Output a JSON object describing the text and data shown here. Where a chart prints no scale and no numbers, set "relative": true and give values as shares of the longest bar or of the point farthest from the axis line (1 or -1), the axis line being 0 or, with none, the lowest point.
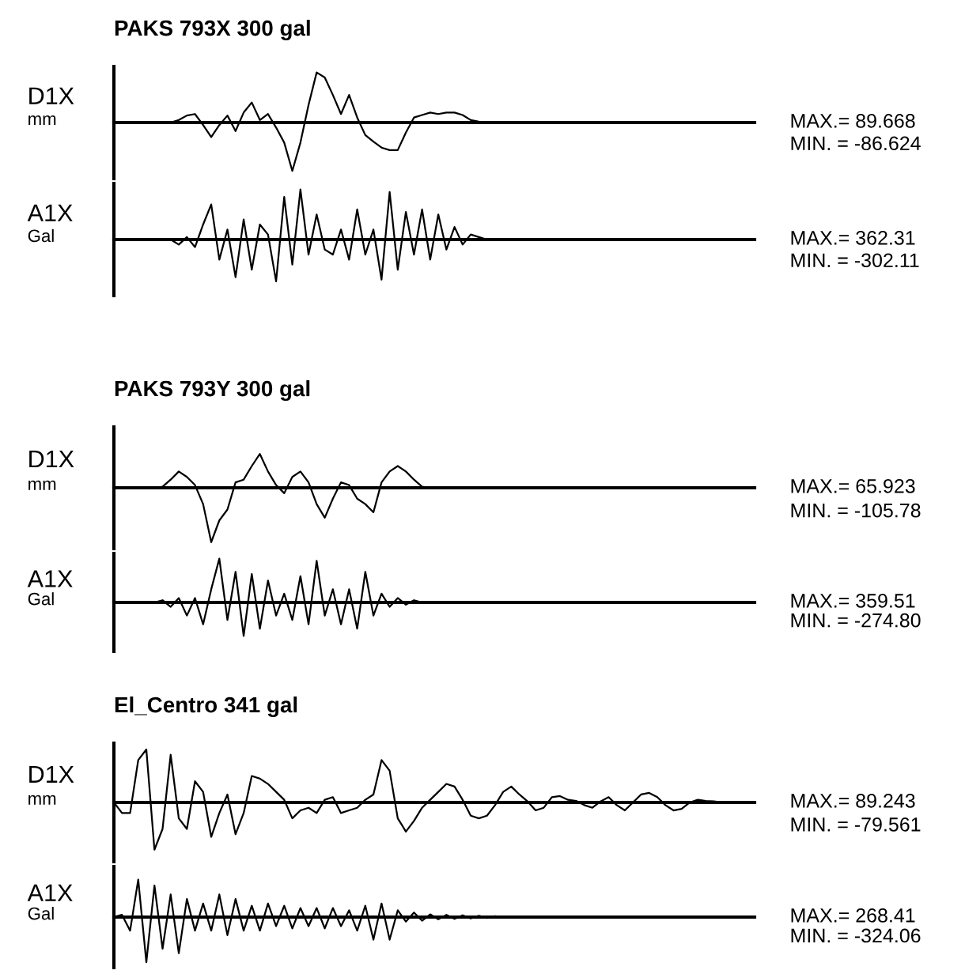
{
  "chart_data": [
    {
      "type": "line",
      "title": "PAKS 793X 300 gal",
      "ylabel": "D1X\nmm",
      "relative": true,
      "color": "#000000",
      "annotations": [
        "MAX.= 89.668",
        "MIN. = -86.624"
      ],
      "categories": [
        null,
        null,
        null,
        null,
        null,
        null,
        null,
        null,
        null,
        null,
        null,
        null,
        null,
        null,
        null,
        null,
        null,
        null,
        null,
        null,
        null,
        null,
        null,
        null,
        null,
        null,
        null,
        null,
        null,
        null,
        null,
        null,
        null,
        null,
        null,
        null,
        null,
        null,
        null,
        null,
        null,
        null,
        null,
        null,
        null,
        null,
        null,
        null,
        null,
        null,
        null,
        null,
        null,
        null,
        null,
        null,
        null,
        null,
        null,
        null,
        null,
        null,
        null,
        null,
        null,
        null,
        null,
        null,
        null,
        null,
        null,
        null,
        null,
        null,
        null,
        null,
        null,
        null,
        null,
        null
      ],
      "values": [
        0,
        0,
        0,
        0,
        0,
        0,
        0,
        0,
        0.05,
        0.14,
        0.17,
        -0.05,
        -0.29,
        -0.05,
        0.14,
        -0.17,
        0.2,
        0.4,
        0.05,
        0.17,
        -0.1,
        -0.4,
        -0.966,
        -0.4,
        0.35,
        1,
        0.9,
        0.55,
        0.17,
        0.55,
        0.1,
        -0.25,
        -0.38,
        -0.5,
        -0.55,
        -0.55,
        -0.2,
        0.1,
        0.15,
        0.2,
        0.17,
        0.2,
        0.2,
        0.15,
        0.05,
        0.02,
        0,
        0,
        0,
        0,
        0,
        0,
        0,
        0,
        0,
        0,
        0,
        0,
        0,
        0,
        0,
        0,
        0,
        0,
        0,
        0,
        0,
        0,
        0,
        0,
        0,
        0,
        0,
        0,
        0,
        0,
        0,
        0,
        0,
        0
      ]
    },
    {
      "type": "line",
      "ylabel": "A1X\nGal",
      "relative": true,
      "color": "#000000",
      "annotations": [
        "MAX.= 362.31",
        "MIN. = -302.11"
      ],
      "categories": [
        null,
        null,
        null,
        null,
        null,
        null,
        null,
        null,
        null,
        null,
        null,
        null,
        null,
        null,
        null,
        null,
        null,
        null,
        null,
        null,
        null,
        null,
        null,
        null,
        null,
        null,
        null,
        null,
        null,
        null,
        null,
        null,
        null,
        null,
        null,
        null,
        null,
        null,
        null,
        null,
        null,
        null,
        null,
        null,
        null,
        null,
        null,
        null,
        null,
        null,
        null,
        null,
        null,
        null,
        null,
        null,
        null,
        null,
        null,
        null,
        null,
        null,
        null,
        null,
        null,
        null,
        null,
        null,
        null,
        null,
        null,
        null,
        null,
        null,
        null,
        null,
        null,
        null,
        null,
        null
      ],
      "values": [
        0,
        0,
        0,
        0,
        0,
        0,
        0,
        0,
        -0.1,
        0.05,
        -0.15,
        0.3,
        0.7,
        -0.4,
        0.2,
        -0.75,
        0.4,
        -0.6,
        0.3,
        0.1,
        -0.834,
        0.85,
        -0.5,
        1,
        -0.3,
        0.5,
        -0.2,
        -0.3,
        0.2,
        -0.4,
        0.6,
        -0.3,
        0.2,
        -0.8,
        0.95,
        -0.6,
        0.55,
        -0.3,
        0.6,
        -0.4,
        0.5,
        -0.2,
        0.25,
        -0.1,
        0.1,
        0.05,
        0,
        0,
        0,
        0,
        0,
        0,
        0,
        0,
        0,
        0,
        0,
        0,
        0,
        0,
        0,
        0,
        0,
        0,
        0,
        0,
        0,
        0,
        0,
        0,
        0,
        0,
        0,
        0,
        0,
        0,
        0,
        0,
        0,
        0
      ]
    },
    {
      "type": "line",
      "title": "PAKS 793Y 300 gal",
      "ylabel": "D1X\nmm",
      "relative": true,
      "color": "#000000",
      "annotations": [
        "MAX.= 65.923",
        "MIN. = -105.78"
      ],
      "categories": [
        null,
        null,
        null,
        null,
        null,
        null,
        null,
        null,
        null,
        null,
        null,
        null,
        null,
        null,
        null,
        null,
        null,
        null,
        null,
        null,
        null,
        null,
        null,
        null,
        null,
        null,
        null,
        null,
        null,
        null,
        null,
        null,
        null,
        null,
        null,
        null,
        null,
        null,
        null,
        null,
        null,
        null,
        null,
        null,
        null,
        null,
        null,
        null,
        null,
        null,
        null,
        null,
        null,
        null,
        null,
        null,
        null,
        null,
        null,
        null,
        null,
        null,
        null,
        null,
        null,
        null,
        null,
        null,
        null,
        null,
        null,
        null,
        null,
        null,
        null,
        null,
        null,
        null,
        null,
        null
      ],
      "values": [
        0,
        0,
        0,
        0,
        0,
        0,
        0.02,
        0.15,
        0.3,
        0.2,
        0.05,
        -0.3,
        -1,
        -0.6,
        -0.4,
        0.1,
        0.15,
        0.4,
        0.623,
        0.3,
        0.05,
        -0.1,
        0.2,
        0.3,
        0.1,
        -0.3,
        -0.55,
        -0.2,
        0.1,
        0.05,
        -0.2,
        -0.3,
        -0.45,
        0.1,
        0.3,
        0.4,
        0.3,
        0.15,
        0.02,
        0,
        0,
        0,
        0,
        0,
        0,
        0,
        0,
        0,
        0,
        0,
        0,
        0,
        0,
        0,
        0,
        0,
        0,
        0,
        0,
        0,
        0,
        0,
        0,
        0,
        0,
        0,
        0,
        0,
        0,
        0,
        0,
        0,
        0,
        0,
        0,
        0,
        0,
        0,
        0,
        0
      ]
    },
    {
      "type": "line",
      "ylabel": "A1X\nGal",
      "relative": true,
      "color": "#000000",
      "annotations": [
        "MAX.= 359.51",
        "MIN. = -274.80"
      ],
      "categories": [
        null,
        null,
        null,
        null,
        null,
        null,
        null,
        null,
        null,
        null,
        null,
        null,
        null,
        null,
        null,
        null,
        null,
        null,
        null,
        null,
        null,
        null,
        null,
        null,
        null,
        null,
        null,
        null,
        null,
        null,
        null,
        null,
        null,
        null,
        null,
        null,
        null,
        null,
        null,
        null,
        null,
        null,
        null,
        null,
        null,
        null,
        null,
        null,
        null,
        null,
        null,
        null,
        null,
        null,
        null,
        null,
        null,
        null,
        null,
        null,
        null,
        null,
        null,
        null,
        null,
        null,
        null,
        null,
        null,
        null,
        null,
        null,
        null,
        null,
        null,
        null,
        null,
        null,
        null,
        null
      ],
      "values": [
        0,
        0,
        0,
        0,
        0,
        0,
        0.05,
        -0.1,
        0.1,
        -0.3,
        0.1,
        -0.5,
        0.3,
        1,
        -0.4,
        0.7,
        -0.764,
        0.65,
        -0.6,
        0.5,
        -0.3,
        0.2,
        -0.4,
        0.6,
        -0.5,
        0.95,
        -0.3,
        0.3,
        -0.5,
        0.3,
        -0.6,
        0.7,
        -0.3,
        0.2,
        -0.1,
        0.1,
        -0.05,
        0.05,
        0,
        0,
        0,
        0,
        0,
        0,
        0,
        0,
        0,
        0,
        0,
        0,
        0,
        0,
        0,
        0,
        0,
        0,
        0,
        0,
        0,
        0,
        0,
        0,
        0,
        0,
        0,
        0,
        0,
        0,
        0,
        0,
        0,
        0,
        0,
        0,
        0,
        0,
        0,
        0,
        0,
        0
      ]
    },
    {
      "type": "line",
      "title": "El_Centro 341 gal",
      "ylabel": "D1X\nmm",
      "relative": true,
      "color": "#000000",
      "annotations": [
        "MAX.= 89.243",
        "MIN. = -79.561"
      ],
      "categories": [
        null,
        null,
        null,
        null,
        null,
        null,
        null,
        null,
        null,
        null,
        null,
        null,
        null,
        null,
        null,
        null,
        null,
        null,
        null,
        null,
        null,
        null,
        null,
        null,
        null,
        null,
        null,
        null,
        null,
        null,
        null,
        null,
        null,
        null,
        null,
        null,
        null,
        null,
        null,
        null,
        null,
        null,
        null,
        null,
        null,
        null,
        null,
        null,
        null,
        null,
        null,
        null,
        null,
        null,
        null,
        null,
        null,
        null,
        null,
        null,
        null,
        null,
        null,
        null,
        null,
        null,
        null,
        null,
        null,
        null,
        null,
        null,
        null,
        null,
        null,
        null,
        null,
        null,
        null,
        null
      ],
      "values": [
        0,
        -0.2,
        -0.2,
        0.8,
        1,
        -0.892,
        -0.5,
        0.9,
        -0.3,
        -0.5,
        0.4,
        0.2,
        -0.65,
        -0.2,
        0.15,
        -0.6,
        -0.2,
        0.5,
        0.45,
        0.35,
        0.2,
        0.05,
        -0.3,
        -0.15,
        -0.1,
        -0.2,
        0.05,
        0.1,
        -0.2,
        -0.15,
        -0.1,
        0.05,
        0.15,
        0.8,
        0.6,
        -0.3,
        -0.55,
        -0.35,
        -0.1,
        0.05,
        0.2,
        0.35,
        0.3,
        0.05,
        -0.25,
        -0.3,
        -0.25,
        -0.05,
        0.2,
        0.3,
        0.15,
        0.02,
        -0.15,
        -0.1,
        0.1,
        0.12,
        0.05,
        0.03,
        -0.05,
        -0.1,
        0.02,
        0.1,
        -0.05,
        -0.15,
        0,
        0.15,
        0.18,
        0.1,
        -0.05,
        -0.15,
        -0.12,
        0,
        0.05,
        0.03,
        0.02,
        0,
        0,
        0,
        0,
        0
      ]
    },
    {
      "type": "line",
      "ylabel": "A1X\nGal",
      "relative": true,
      "color": "#000000",
      "annotations": [
        "MAX.= 268.41",
        "MIN. = -324.06"
      ],
      "categories": [
        null,
        null,
        null,
        null,
        null,
        null,
        null,
        null,
        null,
        null,
        null,
        null,
        null,
        null,
        null,
        null,
        null,
        null,
        null,
        null,
        null,
        null,
        null,
        null,
        null,
        null,
        null,
        null,
        null,
        null,
        null,
        null,
        null,
        null,
        null,
        null,
        null,
        null,
        null,
        null,
        null,
        null,
        null,
        null,
        null,
        null,
        null,
        null,
        null,
        null,
        null,
        null,
        null,
        null,
        null,
        null,
        null,
        null,
        null,
        null,
        null,
        null,
        null,
        null,
        null,
        null,
        null,
        null,
        null,
        null,
        null,
        null,
        null,
        null,
        null,
        null,
        null,
        null,
        null,
        null
      ],
      "values": [
        0,
        0.05,
        -0.3,
        0.828,
        -1,
        0.7,
        -0.7,
        0.5,
        -0.8,
        0.4,
        -0.3,
        0.3,
        -0.3,
        0.5,
        -0.4,
        0.4,
        -0.3,
        0.25,
        -0.3,
        0.3,
        -0.2,
        0.25,
        -0.25,
        0.2,
        -0.2,
        0.2,
        -0.25,
        0.2,
        -0.2,
        0.15,
        -0.3,
        0.25,
        -0.5,
        0.3,
        -0.5,
        0.15,
        -0.1,
        0.1,
        -0.08,
        0.06,
        -0.05,
        0.05,
        -0.04,
        0.04,
        -0.03,
        0.03,
        -0.02,
        0.02,
        0,
        0,
        0,
        0,
        0,
        0,
        0,
        0,
        0,
        0,
        0,
        0,
        0,
        0,
        0,
        0,
        0,
        0,
        0,
        0,
        0,
        0,
        0,
        0,
        0,
        0,
        0,
        0,
        0,
        0,
        0,
        0
      ]
    }
  ]
}
